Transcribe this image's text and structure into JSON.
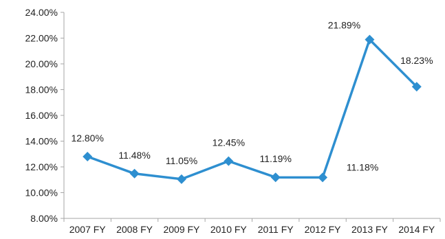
{
  "chart_data": {
    "type": "line",
    "categories": [
      "2007 FY",
      "2008 FY",
      "2009 FY",
      "2010 FY",
      "2011 FY",
      "2012 FY",
      "2013 FY",
      "2014 FY"
    ],
    "series": [
      {
        "values": [
          12.8,
          11.48,
          11.05,
          12.45,
          11.19,
          11.18,
          21.89,
          18.23
        ],
        "data_labels": [
          "12.80%",
          "11.48%",
          "11.05%",
          "12.45%",
          "11.19%",
          "11.18%",
          "21.89%",
          "18.23%"
        ],
        "color": "#2e8fd0",
        "marker": "diamond"
      }
    ],
    "y_ticks": [
      8,
      10,
      12,
      14,
      16,
      18,
      20,
      22,
      24
    ],
    "y_tick_labels": [
      "8.00%",
      "10.00%",
      "12.00%",
      "14.00%",
      "16.00%",
      "18.00%",
      "20.00%",
      "22.00%",
      "24.00%"
    ],
    "ylim": [
      8,
      24
    ],
    "grid": false,
    "legend": "none",
    "axis_color": "#a6a6a6"
  }
}
